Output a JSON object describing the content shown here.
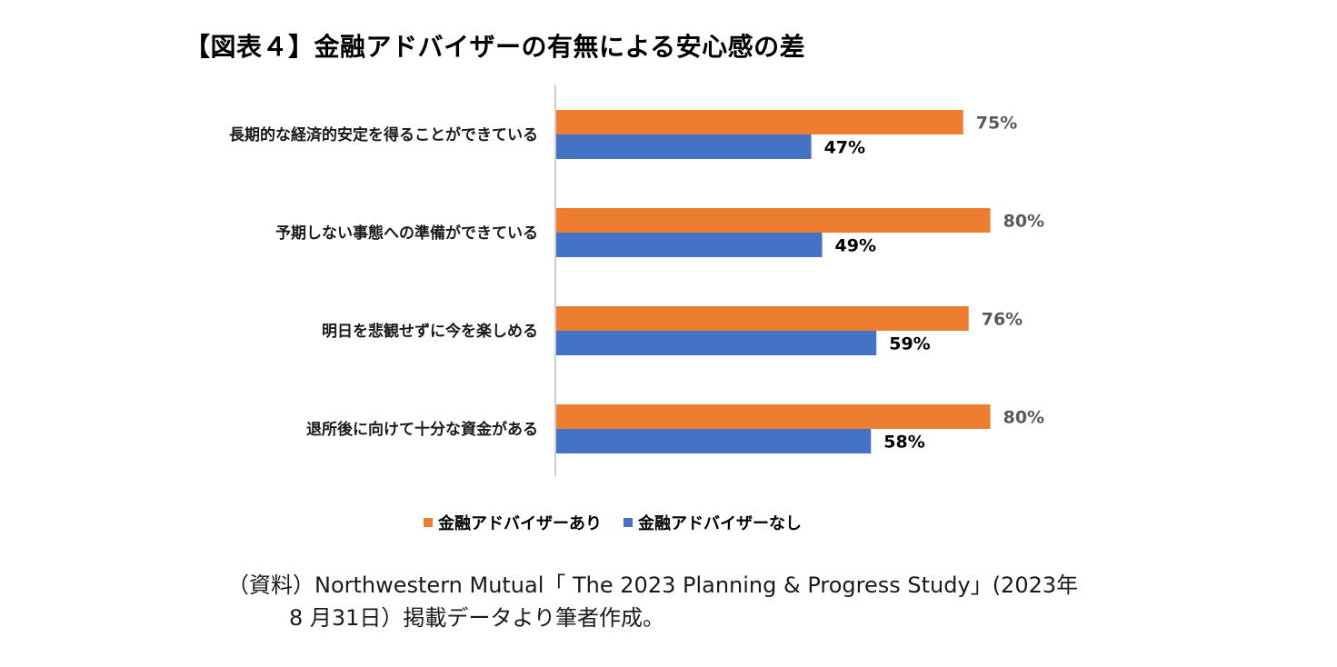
{
  "title": "【図表４】金融アドバイザーの有無による安心感の差",
  "legend": [
    {
      "label": "金融アドバイザーあり",
      "color": "#ED7D31"
    },
    {
      "label": "金融アドバイザーなし",
      "color": "#4472C4"
    }
  ],
  "source": {
    "line1": "（資料）Northwestern Mutual「 The 2023 Planning & Progress Study」(2023年",
    "line2": "8 月31日）掲載データより筆者作成。"
  },
  "chart_data": {
    "type": "bar",
    "orientation": "horizontal",
    "categories": [
      "長期的な経済的安定を得ることができている",
      "予期しない事態への準備ができている",
      "明日を悲観せずに今を楽しめる",
      "退所後に向けて十分な資金がある"
    ],
    "series": [
      {
        "name": "金融アドバイザーあり",
        "values": [
          75,
          80,
          76,
          80
        ],
        "labels": [
          "75%",
          "80%",
          "76%",
          "80%"
        ],
        "color": "#ED7D31",
        "label_color": "#595959"
      },
      {
        "name": "金融アドバイザーなし",
        "values": [
          47,
          49,
          59,
          58
        ],
        "labels": [
          "47%",
          "49%",
          "59%",
          "58%"
        ],
        "color": "#4472C4",
        "label_color": "#000000"
      }
    ],
    "xlim": [
      0,
      100
    ],
    "grid": false,
    "legend_position": "bottom"
  }
}
